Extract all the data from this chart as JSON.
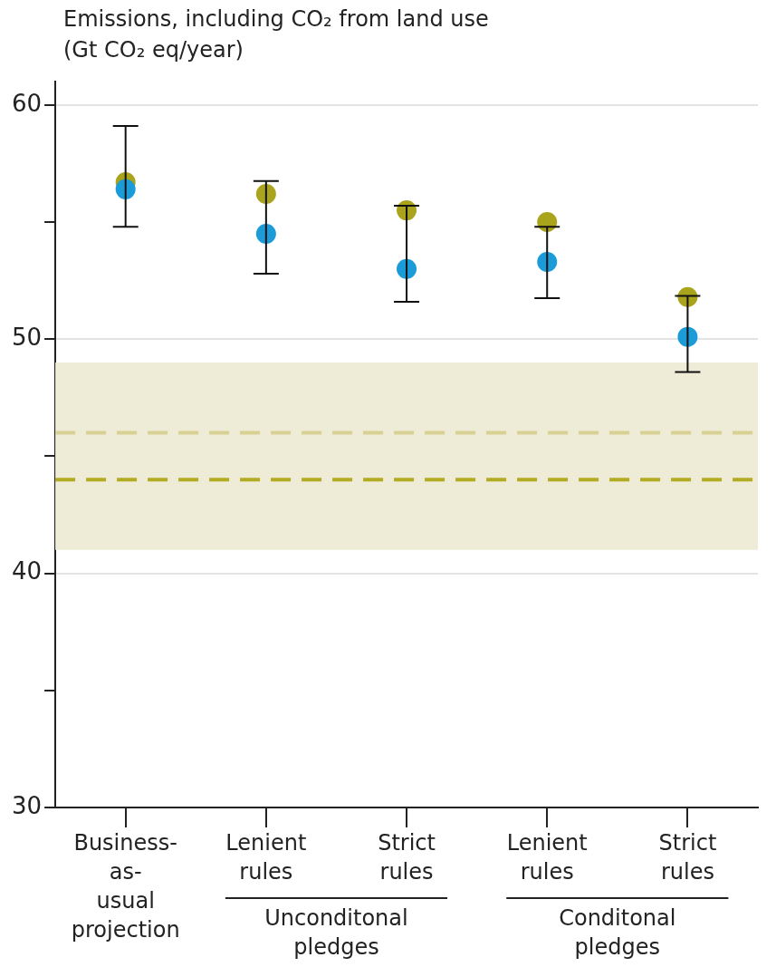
{
  "chart_data": {
    "type": "scatter",
    "title": "Emissions, including CO₂ from land use",
    "ylabel": "(Gt CO₂ eq/year)",
    "categories": [
      "Business-as-usual projection",
      "Lenient rules",
      "Strict rules",
      "Lenient rules",
      "Strict rules"
    ],
    "series": [
      {
        "color": "#aaa31c",
        "values": [
          56.7,
          56.2,
          55.5,
          55.0,
          51.8
        ]
      },
      {
        "color": "#1b9bd7",
        "values": [
          56.4,
          54.5,
          53.0,
          53.3,
          50.1
        ],
        "errors": [
          [
            54.8,
            59.1
          ],
          [
            52.8,
            56.75
          ],
          [
            51.6,
            55.7
          ],
          [
            51.75,
            54.8
          ],
          [
            48.6,
            51.85
          ]
        ]
      }
    ],
    "ylim": [
      30,
      61
    ],
    "yticks": [
      30,
      {
        "value": 35,
        "label": null
      },
      40,
      {
        "value": 45,
        "label": null
      },
      50,
      {
        "value": 55,
        "label": null
      },
      60
    ],
    "grid": "y",
    "marker": "circle",
    "legend": false,
    "bands": [
      {
        "axis": "y",
        "from": 41,
        "to": 49,
        "color": "#eeebd6"
      }
    ],
    "ref_lines": [
      {
        "axis": "y",
        "value": 46,
        "color": "#d8d193",
        "line_style": "dashed"
      },
      {
        "axis": "y",
        "value": 44,
        "color": "#b3ab22",
        "line_style": "dashed"
      }
    ],
    "annotations": [
      "Unconditonal pledges",
      "Conditonal pledges"
    ]
  }
}
